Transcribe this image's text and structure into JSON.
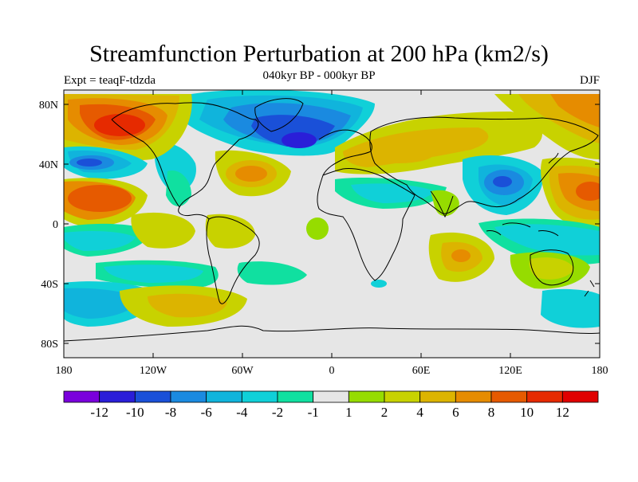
{
  "title": "Streamfunction Perturbation at 200 hPa (km2/s)",
  "subtitle": "040kyr BP - 000kyr BP",
  "left_label": "Expt = teaqF-tdzda",
  "right_label": "DJF",
  "axes": {
    "x_ticks": [
      "180",
      "120W",
      "60W",
      "0",
      "60E",
      "120E",
      "180"
    ],
    "y_ticks": [
      "80N",
      "40N",
      "0",
      "40S",
      "80S"
    ]
  },
  "colorbar": {
    "labels": [
      "-12",
      "-10",
      "-8",
      "-6",
      "-4",
      "-2",
      "-1",
      "1",
      "2",
      "4",
      "6",
      "8",
      "10",
      "12"
    ],
    "colors": [
      "#7a00dc",
      "#2a1ed8",
      "#1a50d8",
      "#1a8ae0",
      "#10b4dc",
      "#10d0d8",
      "#10e0a0",
      "#e6e6e6",
      "#96dc00",
      "#c8d200",
      "#dcb400",
      "#e68c00",
      "#e65a00",
      "#e62a00",
      "#e00000"
    ]
  },
  "fields": {
    "background_color": "#e6e6e6",
    "coast_color": "#000000"
  }
}
